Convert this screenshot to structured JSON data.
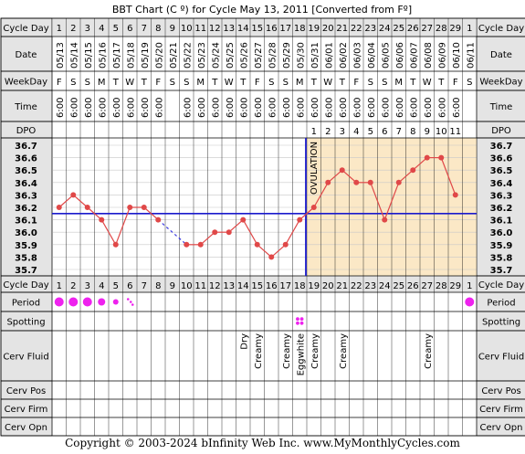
{
  "chart_data": {
    "type": "line",
    "title": "BBT Chart (C º) for Cycle May 13, 2011  [Converted from Fº]",
    "cycle_days": [
      1,
      2,
      3,
      4,
      5,
      6,
      7,
      8,
      9,
      10,
      11,
      12,
      13,
      14,
      15,
      16,
      17,
      18,
      19,
      20,
      21,
      22,
      23,
      24,
      25,
      26,
      27,
      28,
      29,
      1
    ],
    "dates": [
      "05/13",
      "05/14",
      "05/15",
      "05/16",
      "05/17",
      "05/18",
      "05/19",
      "05/20",
      "05/21",
      "05/22",
      "05/23",
      "05/24",
      "05/25",
      "05/26",
      "05/27",
      "05/28",
      "05/29",
      "05/30",
      "05/31",
      "06/01",
      "06/02",
      "06/03",
      "06/04",
      "06/05",
      "06/06",
      "06/07",
      "06/08",
      "06/09",
      "06/10",
      "06/11"
    ],
    "weekdays": [
      "F",
      "S",
      "S",
      "M",
      "T",
      "W",
      "T",
      "F",
      "S",
      "S",
      "M",
      "T",
      "W",
      "T",
      "F",
      "S",
      "S",
      "M",
      "T",
      "W",
      "T",
      "F",
      "S",
      "S",
      "M",
      "T",
      "W",
      "T",
      "F",
      "S"
    ],
    "times": [
      "6:00",
      "6:00",
      "6:00",
      "6:00",
      "6:00",
      "6:00",
      "6:00",
      "6:00",
      "",
      "6:00",
      "6:00",
      "6:00",
      "6:00",
      "6:00",
      "6:00",
      "6:00",
      "6:00",
      "6:00",
      "6:00",
      "6:00",
      "6:00",
      "6:00",
      "6:00",
      "6:00",
      "6:00",
      "6:00",
      "6:00",
      "6:00",
      "6:00",
      ""
    ],
    "dpo": [
      "",
      "",
      "",
      "",
      "",
      "",
      "",
      "",
      "",
      "",
      "",
      "",
      "",
      "",
      "",
      "",
      "",
      "",
      "1",
      "2",
      "3",
      "4",
      "5",
      "6",
      "7",
      "8",
      "9",
      "10",
      "11",
      ""
    ],
    "temperatures": [
      36.2,
      36.3,
      36.2,
      36.1,
      35.9,
      36.2,
      36.2,
      36.1,
      null,
      35.9,
      35.9,
      36.0,
      36.0,
      36.1,
      35.9,
      35.8,
      35.9,
      36.1,
      36.2,
      36.4,
      36.5,
      36.4,
      36.4,
      36.1,
      36.4,
      36.5,
      36.6,
      36.6,
      36.3,
      null
    ],
    "y_ticks": [
      "36.7",
      "36.6",
      "36.5",
      "36.4",
      "36.3",
      "36.2",
      "36.1",
      "36.0",
      "35.9",
      "35.8",
      "35.7"
    ],
    "ylim": [
      35.7,
      36.7
    ],
    "coverline": 36.15,
    "ovulation_day_index": 17,
    "ovulation_label": "OVULATION",
    "period": [
      "heavy",
      "heavy",
      "heavy",
      "medium",
      "light",
      "spotty",
      "",
      "",
      "",
      "",
      "",
      "",
      "",
      "",
      "",
      "",
      "",
      "",
      "",
      "",
      "",
      "",
      "",
      "",
      "",
      "",
      "",
      "",
      "",
      "heavy"
    ],
    "spotting": [
      "",
      "",
      "",
      "",
      "",
      "",
      "",
      "",
      "",
      "",
      "",
      "",
      "",
      "",
      "",
      "",
      "",
      "spot",
      "",
      "",
      "",
      "",
      "",
      "",
      "",
      "",
      "",
      "",
      "",
      ""
    ],
    "cerv_fluid": [
      "",
      "",
      "",
      "",
      "",
      "",
      "",
      "",
      "",
      "",
      "",
      "",
      "",
      "Dry",
      "Creamy",
      "",
      "Creamy",
      "Eggwhite",
      "Creamy",
      "",
      "Creamy",
      "",
      "",
      "",
      "",
      "",
      "Creamy",
      "",
      "",
      ""
    ],
    "row_labels": {
      "cycle_day": "Cycle Day",
      "date": "Date",
      "weekday": "WeekDay",
      "time": "Time",
      "dpo": "DPO",
      "period": "Period",
      "spotting": "Spotting",
      "cerv_fluid": "Cerv Fluid",
      "cerv_pos": "Cerv Pos",
      "cerv_firm": "Cerv Firm",
      "cerv_opn": "Cerv Opn"
    },
    "colors": {
      "temp_line": "#e04848",
      "coverline": "#1a1acc",
      "ovulation_line": "#1a1acc",
      "luteal_bg": "#fbe8c6",
      "label_bg": "#e4e4e4",
      "period_dot": "#ee22ee",
      "grid": "#c8c8c8"
    }
  },
  "copyright": "Copyright © 2003-2024 bInfinity Web Inc.    www.MyMonthlyCycles.com"
}
